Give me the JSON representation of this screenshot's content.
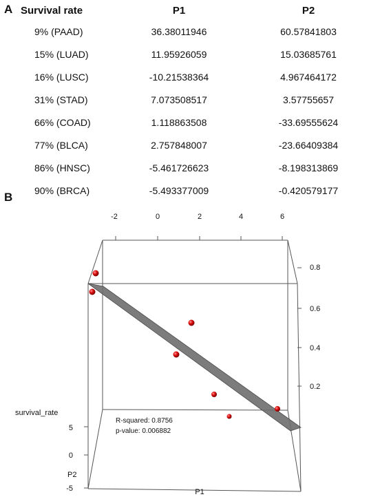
{
  "panel_a_label": "A",
  "panel_b_label": "B",
  "table": {
    "headers": [
      "Survival rate",
      "P1",
      "P2"
    ],
    "rows": [
      [
        "9% (PAAD)",
        "36.38011946",
        "60.57841803"
      ],
      [
        "15% (LUAD)",
        "11.95926059",
        "15.03685761"
      ],
      [
        "16% (LUSC)",
        "-10.21538364",
        "4.967464172"
      ],
      [
        "31% (STAD)",
        "7.073508517",
        "3.57755657"
      ],
      [
        "66% (COAD)",
        "1.118863508",
        "-33.69555624"
      ],
      [
        "77% (BLCA)",
        "2.757848007",
        "-23.66409384"
      ],
      [
        "86% (HNSC)",
        "-5.461726623",
        "-8.198313869"
      ],
      [
        "90% (BRCA)",
        "-5.493377009",
        "-0.420579177"
      ]
    ]
  },
  "chart_data": {
    "type": "scatter",
    "subtype": "3d-scatter-with-regression-plane",
    "x_axis": {
      "label": "P1",
      "ticks": [
        "-2",
        "0",
        "2",
        "4",
        "6"
      ]
    },
    "y_axis": {
      "label": "P2",
      "ticks": [
        "5",
        "0",
        "-5"
      ]
    },
    "z_axis": {
      "label": "survival_rate",
      "ticks": [
        "0.8",
        "0.6",
        "0.4",
        "0.2"
      ]
    },
    "annotations": [
      "R-squared: 0.8756",
      "p-value: 0.006882"
    ],
    "point_color": "#cc0000",
    "plane_color": "#6e6e6e"
  }
}
